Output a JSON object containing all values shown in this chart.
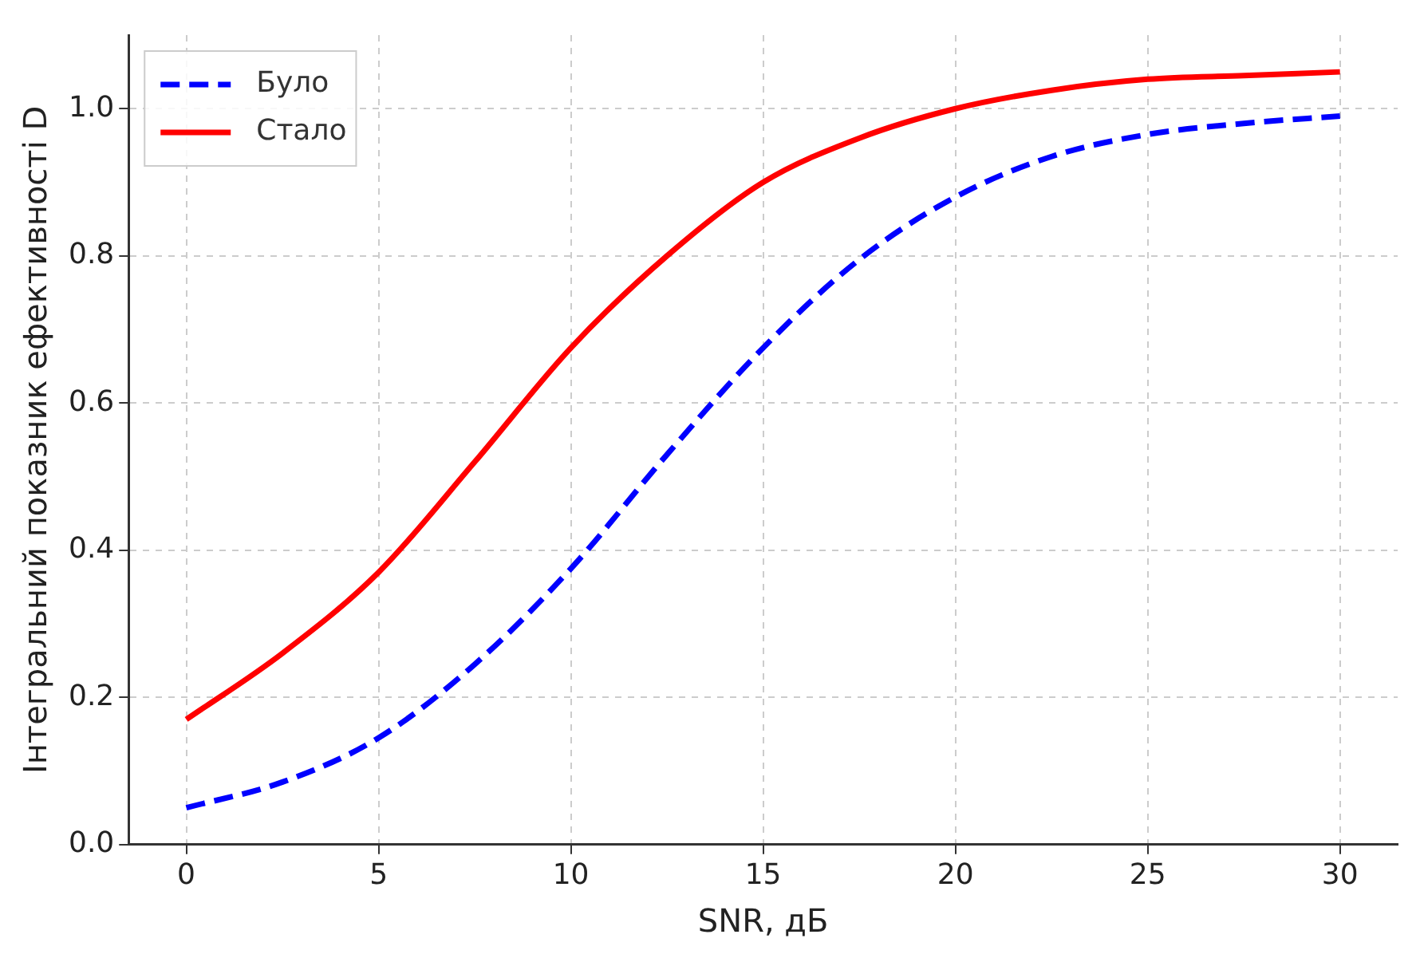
{
  "chart_data": {
    "type": "line",
    "xlabel": "SNR, дБ",
    "ylabel": "Інтегральний показник ефективності D",
    "x": [
      0,
      2.5,
      5,
      7.5,
      10,
      12.5,
      15,
      17.5,
      20,
      22.5,
      25,
      27.5,
      30
    ],
    "series": [
      {
        "name": "Було",
        "color": "#0000ff",
        "line_style": "dashed",
        "values": [
          0.05,
          0.085,
          0.145,
          0.245,
          0.375,
          0.53,
          0.675,
          0.795,
          0.88,
          0.935,
          0.965,
          0.98,
          0.99
        ]
      },
      {
        "name": "Стало",
        "color": "#ff0000",
        "line_style": "solid",
        "values": [
          0.17,
          0.26,
          0.37,
          0.52,
          0.675,
          0.8,
          0.9,
          0.96,
          1.0,
          1.025,
          1.04,
          1.045,
          1.05
        ]
      }
    ],
    "xlim": [
      -1.5,
      31.5
    ],
    "xticks": [
      0,
      5,
      10,
      15,
      20,
      25,
      30
    ],
    "ylim": [
      0,
      1.1
    ],
    "yticks": [
      {
        "value": 0,
        "label": "0.0"
      },
      0.2,
      0.4,
      0.6,
      0.8,
      {
        "value": 1,
        "label": "1.0"
      }
    ],
    "grid": true,
    "legend": "top left",
    "marker": "none"
  }
}
